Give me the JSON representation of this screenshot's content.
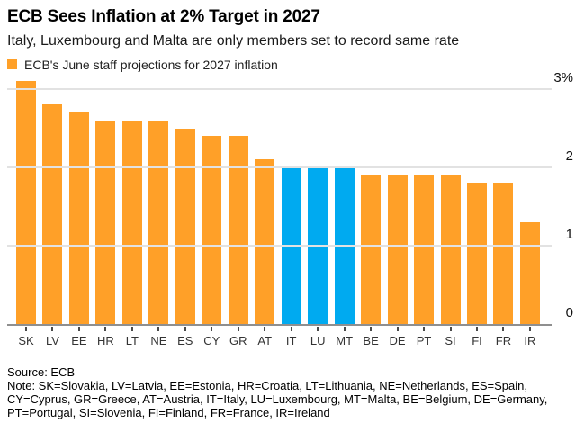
{
  "header": {
    "title": "ECB Sees Inflation at 2% Target in 2027",
    "subtitle": "Italy, Luxembourg and Malta are only members set to record same rate"
  },
  "legend": {
    "label": "ECB's June staff projections for 2027 inflation",
    "swatch_color": "#FFA028"
  },
  "colors": {
    "orange": "#FFA028",
    "blue": "#00AAF0",
    "gridline": "#E2E2E2",
    "baseline": "#8F8F8F",
    "tick": "#4A4A4A"
  },
  "chart_data": {
    "type": "bar",
    "title": "ECB Sees Inflation at 2% Target in 2027",
    "subtitle": "Italy, Luxembourg and Malta are only members set to record same rate",
    "legend_entries": [
      "ECB's June staff projections for 2027 inflation"
    ],
    "legend_position": "top-left",
    "categories": [
      "SK",
      "LV",
      "EE",
      "HR",
      "LT",
      "NE",
      "ES",
      "CY",
      "GR",
      "AT",
      "IT",
      "LU",
      "MT",
      "BE",
      "DE",
      "PT",
      "SI",
      "FI",
      "FR",
      "IR"
    ],
    "values": [
      3.1,
      2.8,
      2.7,
      2.6,
      2.6,
      2.6,
      2.5,
      2.4,
      2.4,
      2.1,
      2.0,
      2.0,
      2.0,
      1.9,
      1.9,
      1.9,
      1.9,
      1.8,
      1.8,
      1.3
    ],
    "unit": "%",
    "highlighted_categories": [
      "IT",
      "LU",
      "MT"
    ],
    "bar_colors": {
      "default": "#FFA028",
      "highlight": "#00AAF0"
    },
    "xlabel": "",
    "ylabel": "",
    "yticks": [
      0,
      1,
      2,
      3
    ],
    "ytick_labels": [
      "0",
      "1",
      "2",
      "3%"
    ],
    "ylim": [
      0,
      3.15
    ],
    "grid": "horizontal",
    "y_axis_side": "right"
  },
  "footer": {
    "source": "Source: ECB",
    "note_lines": [
      "Note: SK=Slovakia, LV=Latvia, EE=Estonia, HR=Croatia, LT=Lithuania, NE=Netherlands, ES=Spain,",
      "CY=Cyprus, GR=Greece, AT=Austria, IT=Italy, LU=Luxembourg, MT=Malta, BE=Belgium, DE=Germany,",
      "PT=Portugal, SI=Slovenia, FI=Finland, FR=France, IR=Ireland"
    ]
  }
}
